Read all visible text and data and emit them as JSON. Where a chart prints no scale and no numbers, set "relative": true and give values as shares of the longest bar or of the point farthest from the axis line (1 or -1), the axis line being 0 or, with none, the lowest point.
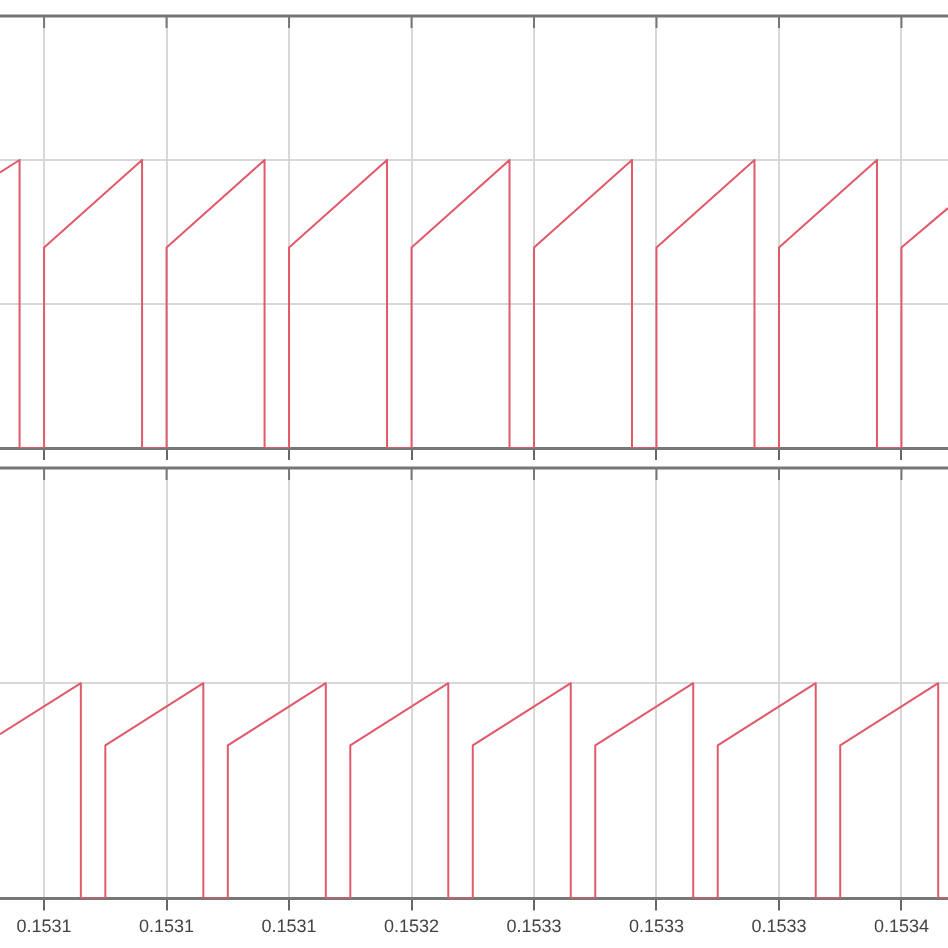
{
  "chart_data": [
    {
      "type": "line",
      "relative": true,
      "grid": true,
      "marker": "none",
      "legend": false,
      "tick_labels": false,
      "xlim": [
        0.153032,
        0.153419
      ],
      "xticks": [
        {
          "value": 0.15305,
          "label": null
        },
        {
          "value": 0.1531,
          "label": null
        },
        {
          "value": 0.15315,
          "label": null
        },
        {
          "value": 0.1532,
          "label": null
        },
        {
          "value": 0.15325,
          "label": null
        },
        {
          "value": 0.1533,
          "label": null
        },
        {
          "value": 0.15335,
          "label": null
        },
        {
          "value": 0.1534,
          "label": null
        }
      ],
      "series": [
        {
          "color": "#e05a6a",
          "x": [
            0.153032,
            0.15304,
            0.15304,
            0.15305,
            0.15305,
            0.15309,
            0.15309,
            0.1531,
            0.1531,
            0.15314,
            0.15314,
            0.15315,
            0.15315,
            0.15319,
            0.15319,
            0.1532,
            0.1532,
            0.15324,
            0.15324,
            0.15325,
            0.15325,
            0.15329,
            0.15329,
            0.1533,
            0.1533,
            0.15334,
            0.15334,
            0.15335,
            0.15335,
            0.15339,
            0.15339,
            0.1534,
            0.1534,
            0.153419
          ],
          "values": [
            0.957,
            1,
            0,
            0,
            0.696,
            1,
            0,
            0,
            0.696,
            1,
            0,
            0,
            0.696,
            1,
            0,
            0,
            0.696,
            1,
            0,
            0,
            0.696,
            1,
            0,
            0,
            0.696,
            1,
            0,
            0,
            0.696,
            1,
            0,
            0,
            0.696,
            0.833
          ]
        }
      ]
    },
    {
      "type": "line",
      "relative": true,
      "grid": true,
      "marker": "none",
      "legend": false,
      "tick_labels": "x",
      "xlim": [
        0.153032,
        0.153419
      ],
      "xticks": [
        {
          "value": 0.15305,
          "label": "0.1531"
        },
        {
          "value": 0.1531,
          "label": "0.1531"
        },
        {
          "value": 0.15315,
          "label": "0.1531"
        },
        {
          "value": 0.1532,
          "label": "0.1532"
        },
        {
          "value": 0.15325,
          "label": "0.1533"
        },
        {
          "value": 0.1533,
          "label": "0.1533"
        },
        {
          "value": 0.15335,
          "label": "0.1533"
        },
        {
          "value": 0.1534,
          "label": "0.1534"
        }
      ],
      "series": [
        {
          "color": "#e05a6a",
          "x": [
            0.153032,
            0.153065,
            0.153065,
            0.153075,
            0.153075,
            0.153115,
            0.153115,
            0.153125,
            0.153125,
            0.153165,
            0.153165,
            0.153175,
            0.153175,
            0.153215,
            0.153215,
            0.153225,
            0.153225,
            0.153265,
            0.153265,
            0.153275,
            0.153275,
            0.153315,
            0.153315,
            0.153325,
            0.153325,
            0.153365,
            0.153365,
            0.153375,
            0.153375,
            0.153415,
            0.153415,
            0.153419
          ],
          "values": [
            0.763,
            1,
            0,
            0,
            0.711,
            1,
            0,
            0,
            0.711,
            1,
            0,
            0,
            0.711,
            1,
            0,
            0,
            0.711,
            1,
            0,
            0,
            0.711,
            1,
            0,
            0,
            0.711,
            1,
            0,
            0,
            0.711,
            1,
            0,
            0
          ]
        }
      ]
    }
  ]
}
